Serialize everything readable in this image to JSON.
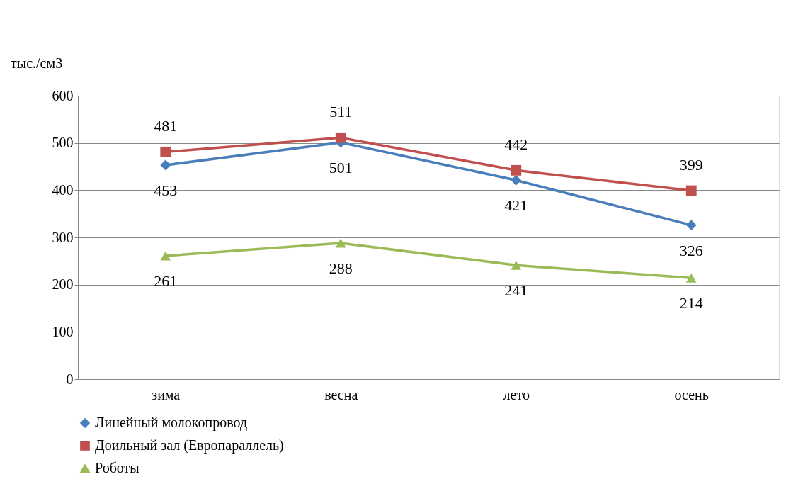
{
  "chart_data": {
    "type": "line",
    "ylabel": "тыс./см3",
    "categories": [
      "зима",
      "весна",
      "лето",
      "осень"
    ],
    "series": [
      {
        "name": "Линейный молокопровод",
        "color": "#4a7ebb",
        "marker": "diamond",
        "values": [
          453,
          501,
          421,
          326
        ]
      },
      {
        "name": "Доильный зал (Европараллель)",
        "color": "#c0504d",
        "marker": "square",
        "values": [
          481,
          511,
          442,
          399
        ]
      },
      {
        "name": "Роботы",
        "color": "#9bbb59",
        "marker": "triangle",
        "values": [
          261,
          288,
          241,
          214
        ]
      }
    ],
    "ylim": [
      0,
      600
    ],
    "yticks": [
      0,
      100,
      200,
      300,
      400,
      500,
      600
    ],
    "grid": "y",
    "legend": "bottom",
    "data_labels": true
  }
}
